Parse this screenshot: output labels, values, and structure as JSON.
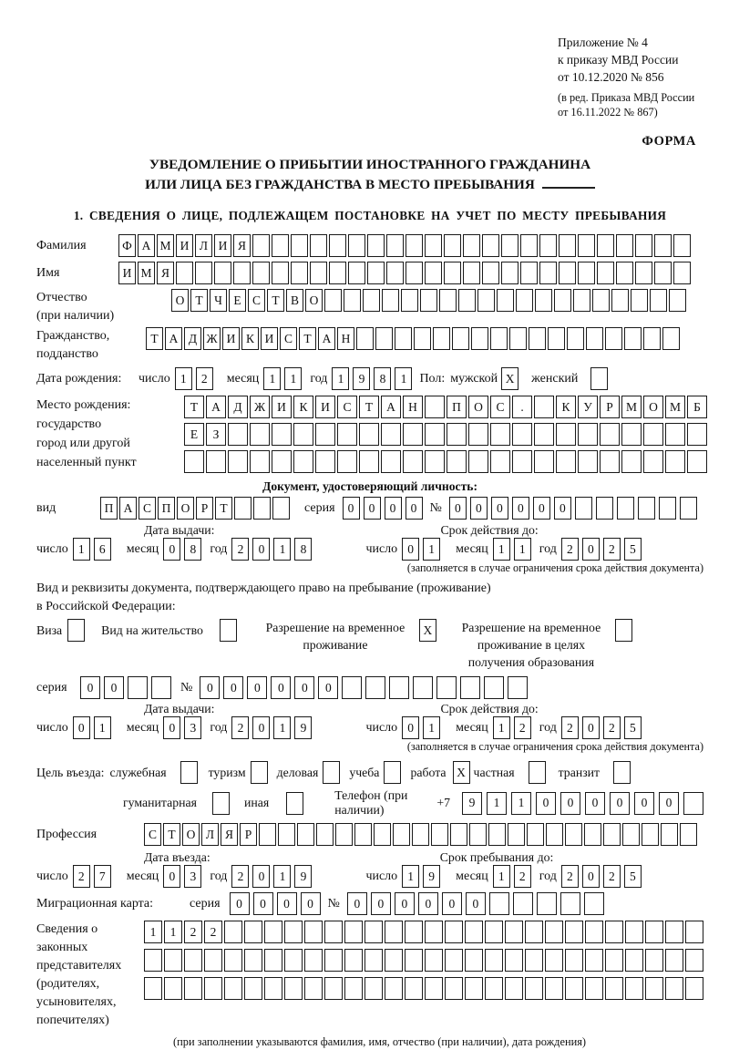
{
  "accent_color": "#1a1a1a",
  "paper_color": "#ffffff",
  "labels": {
    "day": "число",
    "month": "месяц",
    "year": "год"
  },
  "header": {
    "line1": "Приложение № 4",
    "line2": "к приказу МВД России",
    "line3": "от 10.12.2020 № 856",
    "line4": "(в ред. Приказа МВД России",
    "line5": "от 16.11.2022 № 867)",
    "forma": "ФОРМА"
  },
  "title": {
    "line1": "УВЕДОМЛЕНИЕ О ПРИБЫТИИ ИНОСТРАННОГО ГРАЖДАНИНА",
    "line2": "ИЛИ ЛИЦА БЕЗ ГРАЖДАНСТВА В МЕСТО ПРЕБЫВАНИЯ"
  },
  "section1_heading": "1. СВЕДЕНИЯ О ЛИЦЕ, ПОДЛЕЖАЩЕМ ПОСТАНОВКЕ НА УЧЕТ ПО МЕСТУ ПРЕБЫВАНИЯ",
  "person": {
    "surname": {
      "label": "Фамилия",
      "value": "ФАМИЛИЯ",
      "len": 30
    },
    "firstname": {
      "label": "Имя",
      "value": "ИМЯ",
      "len": 30
    },
    "patronymic": {
      "label": "Отчество",
      "label2": "(при наличии)",
      "value": "ОТЧЕСТВО",
      "len": 27
    },
    "citizenship": {
      "label": "Гражданство,",
      "label2": "подданство",
      "value": "ТАДЖИКИСТАН",
      "len": 28
    },
    "birthdate": {
      "label": "Дата рождения:",
      "day": {
        "value": "12",
        "len": 2
      },
      "month": {
        "value": "11",
        "len": 2
      },
      "year": {
        "value": "1981",
        "len": 4
      },
      "sex_label": "Пол:",
      "male_label": "мужской",
      "male_box": {
        "value": "X",
        "len": 1
      },
      "female_label": "женский",
      "female_box": {
        "value": "",
        "len": 1
      }
    },
    "birthplace": {
      "label1": "Место рождения:",
      "label2": "государство",
      "label3": "город или другой",
      "label4": "населенный пункт",
      "row1": {
        "value": "ТАДЖИКИСТАН ПОС. КУРМОМБ",
        "len": 24
      },
      "row2": {
        "value": "ЕЗ",
        "len": 24
      },
      "row3": {
        "value": "",
        "len": 24
      }
    }
  },
  "identity_doc": {
    "heading": "Документ, удостоверяющий личность:",
    "type_label": "вид",
    "type": {
      "value": "ПАСПОРТ",
      "len": 10
    },
    "series_label": "серия",
    "series": {
      "value": "0000",
      "len": 4
    },
    "number_label": "№",
    "number": {
      "value": "000000",
      "len": 12
    },
    "issue_label": "Дата выдачи:",
    "issue": {
      "day": {
        "value": "16",
        "len": 2
      },
      "month": {
        "value": "08",
        "len": 2
      },
      "year": {
        "value": "2018",
        "len": 4
      }
    },
    "valid_label": "Срок действия до:",
    "valid": {
      "day": {
        "value": "01",
        "len": 2
      },
      "month": {
        "value": "11",
        "len": 2
      },
      "year": {
        "value": "2025",
        "len": 4
      }
    },
    "note": "(заполняется в случае ограничения срока действия документа)"
  },
  "residence_doc": {
    "intro1": "Вид и реквизиты документа, подтверждающего право на пребывание (проживание)",
    "intro2": "в Российской Федерации:",
    "visa": {
      "label": "Виза",
      "box": {
        "value": "",
        "len": 1
      }
    },
    "vnzh": {
      "label": "Вид на жительство",
      "box": {
        "value": "",
        "len": 1
      }
    },
    "rvp": {
      "line1": "Разрешение на временное",
      "line2": "проживание",
      "box": {
        "value": "X",
        "len": 1
      }
    },
    "rvpo": {
      "line1": "Разрешение на временное",
      "line2": "проживание в целях",
      "line3": "получения образования",
      "box": {
        "value": "",
        "len": 1
      }
    },
    "series_label": "серия",
    "series": {
      "value": "00",
      "len": 4
    },
    "number_label": "№",
    "number": {
      "value": "000000",
      "len": 14
    },
    "issue_label": "Дата выдачи:",
    "issue": {
      "day": {
        "value": "01",
        "len": 2
      },
      "month": {
        "value": "03",
        "len": 2
      },
      "year": {
        "value": "2019",
        "len": 4
      }
    },
    "valid_label": "Срок действия до:",
    "valid": {
      "day": {
        "value": "01",
        "len": 2
      },
      "month": {
        "value": "12",
        "len": 2
      },
      "year": {
        "value": "2025",
        "len": 4
      }
    },
    "note": "(заполняется в случае ограничения срока действия документа)"
  },
  "visit": {
    "purpose_label": "Цель въезда:",
    "purposes": [
      {
        "label": "служебная",
        "box": {
          "value": "",
          "len": 1
        }
      },
      {
        "label": "туризм",
        "box": {
          "value": "",
          "len": 1
        }
      },
      {
        "label": "деловая",
        "box": {
          "value": "",
          "len": 1
        }
      },
      {
        "label": "учеба",
        "box": {
          "value": "",
          "len": 1
        }
      },
      {
        "label": "работа",
        "box": {
          "value": "X",
          "len": 1
        }
      },
      {
        "label": "частная",
        "box": {
          "value": "",
          "len": 1
        }
      },
      {
        "label": "транзит",
        "box": {
          "value": "",
          "len": 1
        }
      },
      {
        "label": "гуманитарная",
        "box": {
          "value": "",
          "len": 1
        }
      },
      {
        "label": "иная",
        "box": {
          "value": "",
          "len": 1
        }
      }
    ],
    "phone_label": "Телефон (при наличии)",
    "phone_prefix": "+7",
    "phone": {
      "value": "911000000",
      "len": 10
    },
    "profession_label": "Профессия",
    "profession": {
      "value": "СТОЛЯР",
      "len": 29
    },
    "entry_label": "Дата въезда:",
    "entry": {
      "day": {
        "value": "27",
        "len": 2
      },
      "month": {
        "value": "03",
        "len": 2
      },
      "year": {
        "value": "2019",
        "len": 4
      }
    },
    "stay_label": "Срок пребывания до:",
    "stay": {
      "day": {
        "value": "19",
        "len": 2
      },
      "month": {
        "value": "12",
        "len": 2
      },
      "year": {
        "value": "2025",
        "len": 4
      }
    }
  },
  "migration_card": {
    "label": "Миграционная карта:",
    "series_label": "серия",
    "series": {
      "value": "0000",
      "len": 4
    },
    "number_label": "№",
    "number": {
      "value": "000000",
      "len": 11
    }
  },
  "representatives": {
    "label1": "Сведения о",
    "label2": "законных",
    "label3": "представителях",
    "label4": "(родителях,",
    "label5": "усыновителях,",
    "label6": "попечителях)",
    "row1": {
      "value": "1122",
      "len": 28
    },
    "row2": {
      "value": "",
      "len": 28
    },
    "row3": {
      "value": "",
      "len": 28
    },
    "note": "(при заполнении указываются фамилия, имя, отчество (при наличии), дата рождения)"
  }
}
